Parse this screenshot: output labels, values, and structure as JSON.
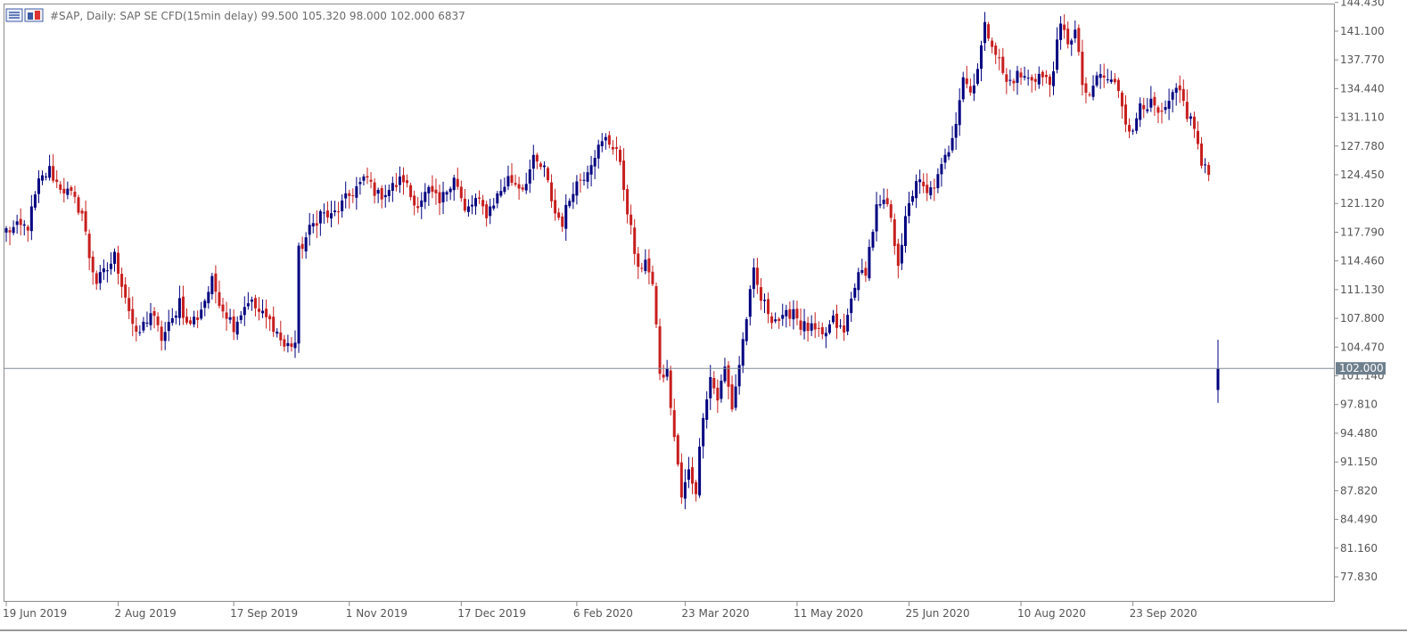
{
  "header": {
    "symbol": "#SAP",
    "timeframe": "Daily:",
    "description": "SAP SE CFD(15min delay)",
    "ohlc": "99.500 105.320 98.000 102.000",
    "volume": "6837"
  },
  "toolbar": {
    "icons": [
      "indicator-list-icon",
      "object-list-icon"
    ]
  },
  "colors": {
    "bull": "#000080",
    "bear": "#c81e1e",
    "axis": "#8c8c8c",
    "price_line": "#7f8c97",
    "price_label_bg": "#6e7f8d"
  },
  "chart_data": {
    "type": "candlestick",
    "x_tick_labels": [
      "19 Jun 2019",
      "2 Aug 2019",
      "17 Sep 2019",
      "1 Nov 2019",
      "17 Dec 2019",
      "6 Feb 2020",
      "23 Mar 2020",
      "11 May 2020",
      "25 Jun 2020",
      "10 Aug 2020",
      "23 Sep 2020"
    ],
    "y_tick_labels": [
      "144.430",
      "141.100",
      "137.770",
      "134.440",
      "131.110",
      "127.780",
      "124.450",
      "121.120",
      "117.790",
      "114.460",
      "111.130",
      "107.800",
      "104.470",
      "101.140",
      "97.810",
      "94.480",
      "91.150",
      "87.820",
      "84.490",
      "81.160",
      "77.830"
    ],
    "y_ticks": [
      144.43,
      141.1,
      137.77,
      134.44,
      131.11,
      127.78,
      124.45,
      121.12,
      117.79,
      114.46,
      111.13,
      107.8,
      104.47,
      101.14,
      97.81,
      94.48,
      91.15,
      87.82,
      84.49,
      81.16,
      77.83
    ],
    "ylim": [
      74.94,
      144.71
    ],
    "current_price": 102.0,
    "current_price_label": "102.000",
    "anchors": [
      {
        "i": 0,
        "p": 118.0
      },
      {
        "i": 6,
        "p": 118.5
      },
      {
        "i": 9,
        "p": 123.5
      },
      {
        "i": 12,
        "p": 125.0
      },
      {
        "i": 14,
        "p": 123.5
      },
      {
        "i": 18,
        "p": 122.0
      },
      {
        "i": 21,
        "p": 120.0
      },
      {
        "i": 23,
        "p": 115.0
      },
      {
        "i": 25,
        "p": 112.0
      },
      {
        "i": 28,
        "p": 113.5
      },
      {
        "i": 30,
        "p": 115.0
      },
      {
        "i": 33,
        "p": 110.5
      },
      {
        "i": 36,
        "p": 105.5
      },
      {
        "i": 40,
        "p": 108.5
      },
      {
        "i": 43,
        "p": 105.5
      },
      {
        "i": 46,
        "p": 107.5
      },
      {
        "i": 48,
        "p": 110.0
      },
      {
        "i": 50,
        "p": 107.0
      },
      {
        "i": 53,
        "p": 108.0
      },
      {
        "i": 57,
        "p": 112.0
      },
      {
        "i": 60,
        "p": 109.0
      },
      {
        "i": 63,
        "p": 107.0
      },
      {
        "i": 67,
        "p": 110.0
      },
      {
        "i": 70,
        "p": 108.5
      },
      {
        "i": 74,
        "p": 107.0
      },
      {
        "i": 77,
        "p": 104.5
      },
      {
        "i": 80,
        "p": 105.0
      },
      {
        "i": 81,
        "p": 115.5
      },
      {
        "i": 84,
        "p": 118.0
      },
      {
        "i": 87,
        "p": 120.0
      },
      {
        "i": 90,
        "p": 119.5
      },
      {
        "i": 93,
        "p": 121.0
      },
      {
        "i": 97,
        "p": 123.0
      },
      {
        "i": 100,
        "p": 124.0
      },
      {
        "i": 103,
        "p": 122.0
      },
      {
        "i": 107,
        "p": 123.0
      },
      {
        "i": 110,
        "p": 124.0
      },
      {
        "i": 113,
        "p": 121.0
      },
      {
        "i": 117,
        "p": 122.5
      },
      {
        "i": 120,
        "p": 121.0
      },
      {
        "i": 124,
        "p": 124.5
      },
      {
        "i": 127,
        "p": 120.0
      },
      {
        "i": 130,
        "p": 121.5
      },
      {
        "i": 133,
        "p": 120.0
      },
      {
        "i": 136,
        "p": 122.0
      },
      {
        "i": 139,
        "p": 124.0
      },
      {
        "i": 143,
        "p": 123.0
      },
      {
        "i": 146,
        "p": 126.0
      },
      {
        "i": 149,
        "p": 125.0
      },
      {
        "i": 152,
        "p": 120.0
      },
      {
        "i": 154,
        "p": 119.0
      },
      {
        "i": 157,
        "p": 123.0
      },
      {
        "i": 160,
        "p": 124.5
      },
      {
        "i": 163,
        "p": 127.0
      },
      {
        "i": 166,
        "p": 128.5
      },
      {
        "i": 169,
        "p": 127.5
      },
      {
        "i": 171,
        "p": 123.0
      },
      {
        "i": 173,
        "p": 118.0
      },
      {
        "i": 175,
        "p": 113.0
      },
      {
        "i": 177,
        "p": 115.0
      },
      {
        "i": 179,
        "p": 111.0
      },
      {
        "i": 180,
        "p": 107.5
      },
      {
        "i": 181,
        "p": 101.0
      },
      {
        "i": 183,
        "p": 101.5
      },
      {
        "i": 185,
        "p": 94.0
      },
      {
        "i": 187,
        "p": 87.0
      },
      {
        "i": 189,
        "p": 90.0
      },
      {
        "i": 191,
        "p": 88.0
      },
      {
        "i": 193,
        "p": 97.0
      },
      {
        "i": 195,
        "p": 101.0
      },
      {
        "i": 197,
        "p": 98.5
      },
      {
        "i": 199,
        "p": 102.0
      },
      {
        "i": 201,
        "p": 97.5
      },
      {
        "i": 203,
        "p": 102.5
      },
      {
        "i": 205,
        "p": 108.0
      },
      {
        "i": 207,
        "p": 113.0
      },
      {
        "i": 209,
        "p": 110.0
      },
      {
        "i": 212,
        "p": 108.0
      },
      {
        "i": 215,
        "p": 107.5
      },
      {
        "i": 218,
        "p": 109.0
      },
      {
        "i": 220,
        "p": 107.0
      },
      {
        "i": 223,
        "p": 106.5
      },
      {
        "i": 226,
        "p": 105.5
      },
      {
        "i": 229,
        "p": 107.5
      },
      {
        "i": 232,
        "p": 106.0
      },
      {
        "i": 235,
        "p": 112.0
      },
      {
        "i": 238,
        "p": 113.5
      },
      {
        "i": 241,
        "p": 120.5
      },
      {
        "i": 244,
        "p": 121.0
      },
      {
        "i": 247,
        "p": 114.5
      },
      {
        "i": 249,
        "p": 119.0
      },
      {
        "i": 252,
        "p": 124.0
      },
      {
        "i": 255,
        "p": 122.0
      },
      {
        "i": 258,
        "p": 124.0
      },
      {
        "i": 261,
        "p": 127.5
      },
      {
        "i": 263,
        "p": 131.0
      },
      {
        "i": 265,
        "p": 136.0
      },
      {
        "i": 267,
        "p": 134.0
      },
      {
        "i": 269,
        "p": 137.0
      },
      {
        "i": 271,
        "p": 141.5
      },
      {
        "i": 273,
        "p": 140.0
      },
      {
        "i": 275,
        "p": 137.5
      },
      {
        "i": 277,
        "p": 135.0
      },
      {
        "i": 280,
        "p": 136.0
      },
      {
        "i": 283,
        "p": 135.5
      },
      {
        "i": 286,
        "p": 136.0
      },
      {
        "i": 289,
        "p": 135.0
      },
      {
        "i": 292,
        "p": 141.5
      },
      {
        "i": 294,
        "p": 140.0
      },
      {
        "i": 296,
        "p": 141.0
      },
      {
        "i": 298,
        "p": 135.0
      },
      {
        "i": 300,
        "p": 133.0
      },
      {
        "i": 302,
        "p": 136.0
      },
      {
        "i": 305,
        "p": 135.5
      },
      {
        "i": 308,
        "p": 134.5
      },
      {
        "i": 310,
        "p": 131.0
      },
      {
        "i": 312,
        "p": 129.0
      },
      {
        "i": 314,
        "p": 133.0
      },
      {
        "i": 317,
        "p": 132.5
      },
      {
        "i": 320,
        "p": 131.0
      },
      {
        "i": 323,
        "p": 133.5
      },
      {
        "i": 325,
        "p": 134.0
      },
      {
        "i": 327,
        "p": 131.5
      },
      {
        "i": 329,
        "p": 130.0
      },
      {
        "i": 331,
        "p": 125.5
      },
      {
        "i": 333,
        "p": 124.5
      }
    ],
    "last_candle": {
      "open": 99.5,
      "high": 105.32,
      "low": 98.0,
      "close": 102.0
    }
  }
}
